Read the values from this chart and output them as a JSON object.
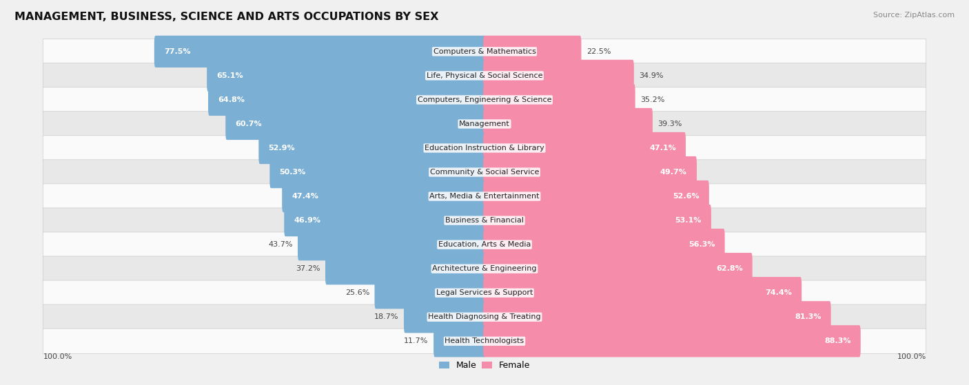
{
  "title": "MANAGEMENT, BUSINESS, SCIENCE AND ARTS OCCUPATIONS BY SEX",
  "source": "Source: ZipAtlas.com",
  "categories": [
    "Computers & Mathematics",
    "Life, Physical & Social Science",
    "Computers, Engineering & Science",
    "Management",
    "Education Instruction & Library",
    "Community & Social Service",
    "Arts, Media & Entertainment",
    "Business & Financial",
    "Education, Arts & Media",
    "Architecture & Engineering",
    "Legal Services & Support",
    "Health Diagnosing & Treating",
    "Health Technologists"
  ],
  "male": [
    77.5,
    65.1,
    64.8,
    60.7,
    52.9,
    50.3,
    47.4,
    46.9,
    43.7,
    37.2,
    25.6,
    18.7,
    11.7
  ],
  "female": [
    22.5,
    34.9,
    35.2,
    39.3,
    47.1,
    49.7,
    52.6,
    53.1,
    56.3,
    62.8,
    74.4,
    81.3,
    88.3
  ],
  "male_color": "#7bafd4",
  "female_color": "#f48caa",
  "bg_color": "#f0f0f0",
  "row_bg_even": "#fafafa",
  "row_bg_odd": "#e8e8e8",
  "title_fontsize": 11.5,
  "label_fontsize": 8,
  "pct_fontsize": 8,
  "legend_fontsize": 9,
  "source_fontsize": 8
}
